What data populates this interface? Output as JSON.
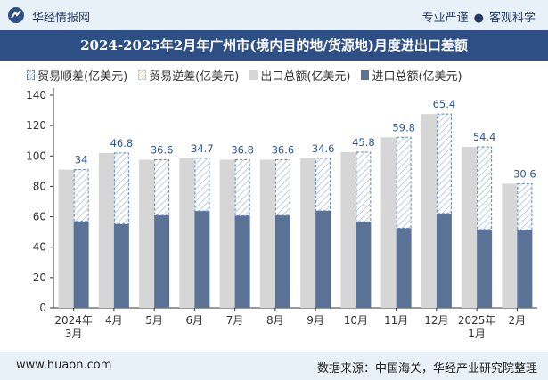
{
  "header": {
    "brand": "华经情报网",
    "tag_left": "专业严谨",
    "tag_sep": "●",
    "tag_right": "客观科学"
  },
  "title": "2024-2025年2月年广州市(境内目的地/货源地)月度进出口差额",
  "footer": {
    "site": "www.huaon.com",
    "source": "数据来源：中国海关，华经产业研究院整理"
  },
  "colors": {
    "export": "#d6d6d6",
    "import": "#5b7297",
    "surplus_border": "#5a87c5",
    "surplus_label": "#2f5597",
    "header_bg": "#e8f0f8",
    "title_bg": "#2d4f86"
  },
  "chart_data": {
    "type": "bar",
    "legend": [
      "贸易顺差(亿美元)",
      "贸易逆差(亿美元)",
      "出口总额(亿美元)",
      "进口总额(亿美元)"
    ],
    "categories": [
      "2024年\n3月",
      "4月",
      "5月",
      "6月",
      "7月",
      "8月",
      "9月",
      "10月",
      "11月",
      "12月",
      "2025年\n1月",
      "2月"
    ],
    "series": [
      {
        "name": "出口总额(亿美元)",
        "values": [
          91,
          102,
          97.5,
          98.5,
          97.5,
          97.5,
          98.5,
          102.5,
          112.3,
          127.6,
          106,
          81.8
        ]
      },
      {
        "name": "进口总额(亿美元)",
        "values": [
          57,
          55.2,
          60.9,
          63.8,
          60.7,
          60.9,
          63.9,
          56.7,
          52.5,
          62.2,
          51.6,
          51.2
        ]
      },
      {
        "name": "贸易顺差(亿美元)",
        "values": [
          34,
          46.8,
          36.6,
          34.7,
          36.8,
          36.6,
          34.6,
          45.8,
          59.8,
          65.4,
          54.4,
          30.6
        ]
      },
      {
        "name": "贸易逆差(亿美元)",
        "values": [
          0,
          0,
          0,
          0,
          0,
          0,
          0,
          0,
          0,
          0,
          0,
          0
        ]
      }
    ],
    "ylim": [
      0,
      140
    ],
    "yticks": [
      0,
      20,
      40,
      60,
      80,
      100,
      120,
      140
    ],
    "grid": false,
    "legend_position": "top-left"
  }
}
